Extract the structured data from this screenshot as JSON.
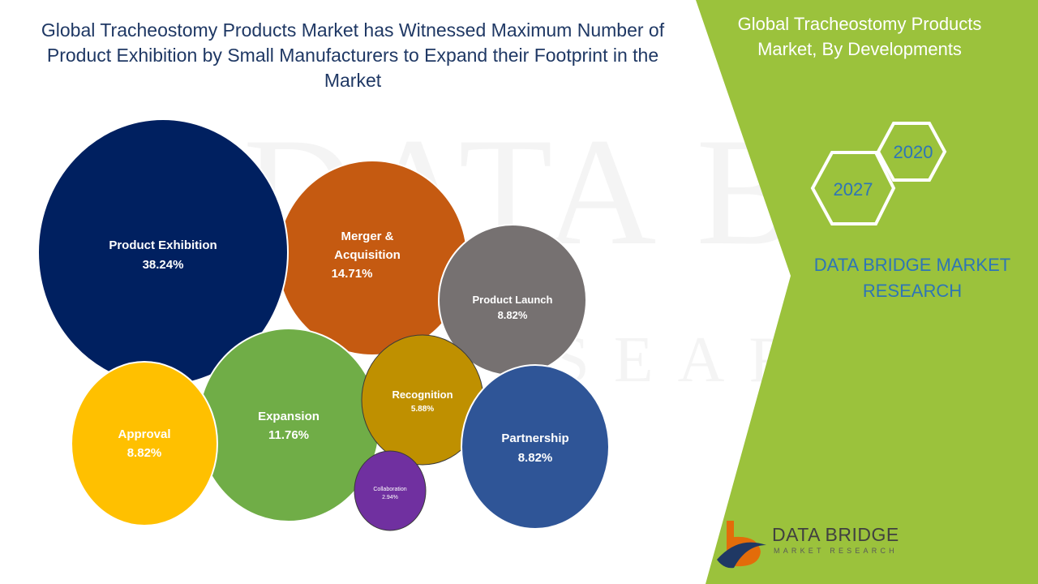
{
  "header": {
    "title_lines": [
      "Global Tracheostomy Products Market has Witnessed Maximum Number of",
      "Product Exhibition by Small Manufacturers to Expand their Footprint in the",
      "Market"
    ]
  },
  "side_panel": {
    "title_lines": [
      "Global Tracheostomy Products",
      "Market, By Developments"
    ],
    "years": [
      "2020",
      "2027"
    ],
    "brand_lines": [
      "DATA BRIDGE MARKET",
      "RESEARCH"
    ],
    "color": "#9bc23c"
  },
  "logo": {
    "name": "DATA BRIDGE",
    "tagline": "MARKET RESEARCH",
    "watermark_lines": [
      "DATA BRIDGE",
      "RESEARCH"
    ]
  },
  "chart_data": {
    "type": "bubble",
    "title": "Global Tracheostomy Products Market has Witnessed Maximum Number of Product Exhibition by Small Manufacturers to Expand their Footprint in the Market",
    "unit": "%",
    "series": [
      {
        "name": "Product Exhibition",
        "value": 38.24,
        "label": "38.24%",
        "color": "#002060"
      },
      {
        "name": "Merger & Acquisition",
        "value": 14.71,
        "label": "14.71%",
        "color": "#c55a11"
      },
      {
        "name": "Product Launch",
        "value": 8.82,
        "label": "8.82%",
        "color": "#767171"
      },
      {
        "name": "Expansion",
        "value": 11.76,
        "label": "11.76%",
        "color": "#70ad47"
      },
      {
        "name": "Approval",
        "value": 8.82,
        "label": "8.82%",
        "color": "#ffc000"
      },
      {
        "name": "Recognition",
        "value": 5.88,
        "label": "5.88%",
        "color": "#bf9000"
      },
      {
        "name": "Partnership",
        "value": 8.82,
        "label": "8.82%",
        "color": "#2f5597"
      },
      {
        "name": "Collaboration",
        "value": 2.94,
        "label": "2.94%",
        "color": "#7030a0"
      }
    ]
  }
}
